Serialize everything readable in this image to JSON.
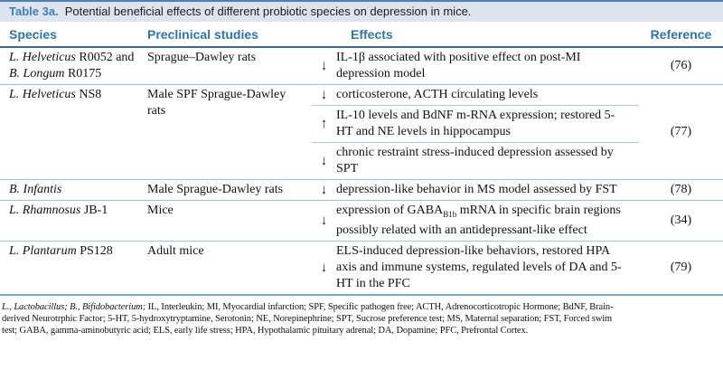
{
  "title": {
    "label": "Table 3a.",
    "text": "Potential beneficial effects of different probiotic species on depression in mice."
  },
  "columns": {
    "species": "Species",
    "preclinical": "Preclinical studies",
    "effects": "Effects",
    "reference": "Reference"
  },
  "rows": [
    {
      "species": [
        {
          "italic": "L. Helveticus",
          "rest": " R0052 and"
        },
        {
          "italic": "B. Longum",
          "rest": " R0175"
        }
      ],
      "preclinical": "Sprague–Dawley rats",
      "effects": [
        {
          "arrow": "↓",
          "text": "IL-1β associated with positive effect on post-MI depression model"
        }
      ],
      "reference": "(76)"
    },
    {
      "species": [
        {
          "italic": "L. Helveticus",
          "rest": " NS8"
        }
      ],
      "preclinical": "Male SPF Sprague-Dawley rats",
      "effects": [
        {
          "arrow": "↓",
          "text": "corticosterone, ACTH circulating levels"
        },
        {
          "arrow": "↑",
          "text": "IL-10 levels and BdNF m-RNA expression; restored 5-HT and NE levels in hippocampus"
        },
        {
          "arrow": "↓",
          "text": "chronic restraint stress-induced depression assessed by SPT"
        }
      ],
      "reference": "(77)"
    },
    {
      "species": [
        {
          "italic": "B. Infantis",
          "rest": ""
        }
      ],
      "preclinical": "Male Sprague-Dawley rats",
      "effects": [
        {
          "arrow": "↓",
          "text": "depression-like behavior in MS model assessed by FST"
        }
      ],
      "reference": "(78)"
    },
    {
      "species": [
        {
          "italic": "L. Rhamnosus",
          "rest": " JB-1"
        }
      ],
      "preclinical": "Mice",
      "effects": [
        {
          "arrow": "↓",
          "pre": "expression of GABA",
          "sub": "B1b",
          "post": " mRNA in specific brain regions possibly related with an antidepressant-like effect"
        }
      ],
      "reference": "(34)"
    },
    {
      "species": [
        {
          "italic": "L. Plantarum",
          "rest": " PS128"
        }
      ],
      "preclinical": "Adult mice",
      "effects": [
        {
          "arrow": "↓",
          "text": "ELS-induced depression-like behaviors, restored HPA axis and immune systems, regulated levels of DA and 5-HT in the PFC"
        }
      ],
      "reference": "(79)"
    }
  ],
  "footnote": {
    "lines": [
      {
        "italic": "L., Lactobacillus; B., Bifidobacterium;",
        "text": " IL, Interleukin; MI, Myocardial infarction; SPF, Specific pathogen free; ACTH, Adrenocorticotropic Hormone; BdNF, Brain-"
      },
      {
        "italic": "",
        "text": "derived Neurotrphic Factor; 5-HT, 5-hydroxytryptamine, Serotonin; NE, Norepinephrine; SPT, Sucrose preference test; MS, Maternal separation; FST, Forced swim"
      },
      {
        "italic": "",
        "text": "test; GABA, gamma-aminobutyric acid; ELS, early life stress; HPA, Hypothalamic pituitary adrenal; DA, Dopamine; PFC, Prefrontal Cortex."
      }
    ]
  },
  "colors": {
    "accent_blue": "#2e74b5",
    "title_bar_bg": "#dde4f0",
    "row_separator": "#9bbede",
    "sub_separator": "#a9c9ea"
  }
}
